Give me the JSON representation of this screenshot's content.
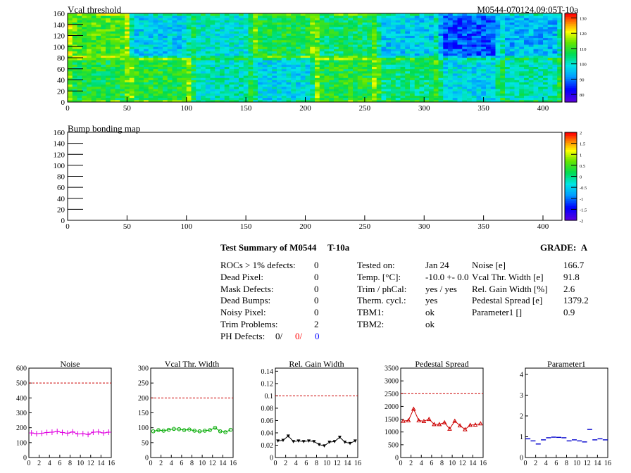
{
  "colors": {
    "red": "#ff0000",
    "blue": "#0000ff",
    "magenta": "#e000e0",
    "green": "#00aa00",
    "black": "#000000",
    "darkred": "#cc0000",
    "navy": "#0000cc",
    "dashed_ref": "#cc0000"
  },
  "heading_right": "M0544-070124.09:05T-10a",
  "summary": {
    "title": "Test Summary of M0544",
    "temp_tag": "T-10a",
    "grade_label": "GRADE:",
    "grade": "A",
    "left": [
      {
        "label": "ROCs > 1% defects:",
        "value": "0"
      },
      {
        "label": "Dead Pixel:",
        "value": "0"
      },
      {
        "label": "Mask Defects:",
        "value": "0"
      },
      {
        "label": "Dead Bumps:",
        "value": "0"
      },
      {
        "label": "Noisy Pixel:",
        "value": "0"
      },
      {
        "label": "Trim Problems:",
        "value": "2"
      }
    ],
    "ph_label": "PH Defects:",
    "ph_values": [
      "0/",
      "0/",
      "0"
    ],
    "middle": [
      {
        "label": "Tested on:",
        "value": "Jan 24"
      },
      {
        "label": "Temp. [°C]:",
        "value": "-10.0 +- 0.0"
      },
      {
        "label": "Trim / phCal:",
        "value": "yes / yes"
      },
      {
        "label": "Therm. cycl.:",
        "value": "yes"
      },
      {
        "label": "TBM1:",
        "value": "ok"
      },
      {
        "label": "TBM2:",
        "value": "ok"
      }
    ],
    "right": [
      {
        "label": "Noise [e]",
        "value": "166.7"
      },
      {
        "label": "Vcal Thr. Width [e]",
        "value": "91.8"
      },
      {
        "label": "Rel. Gain Width [%]",
        "value": "2.6"
      },
      {
        "label": "Pedestal Spread [e]",
        "value": "1379.2"
      },
      {
        "label": "Parameter1 []",
        "value": "0.9"
      }
    ]
  },
  "chart_data": [
    {
      "type": "heatmap",
      "title": "Vcal threshold",
      "xlim": [
        0,
        416
      ],
      "ylim": [
        0,
        160
      ],
      "xticks": [
        0,
        50,
        100,
        150,
        200,
        250,
        300,
        350,
        400
      ],
      "yticks": [
        0,
        20,
        40,
        60,
        80,
        100,
        120,
        140,
        160
      ],
      "colorbar_ticks": [
        "130",
        "120",
        "110",
        "100",
        "90",
        "80"
      ],
      "zlim": [
        75,
        133
      ],
      "grid": {
        "cols": 8,
        "rows": 2
      },
      "roc_means_top": [
        112,
        97,
        100,
        108,
        106,
        97,
        88,
        95
      ],
      "roc_means_bottom": [
        108,
        109,
        101,
        98,
        109,
        105,
        98,
        102
      ]
    },
    {
      "type": "heatmap",
      "title": "Bump bonding map",
      "xlim": [
        0,
        416
      ],
      "ylim": [
        0,
        160
      ],
      "xticks": [
        0,
        50,
        100,
        150,
        200,
        250,
        300,
        350,
        400
      ],
      "yticks": [
        0,
        20,
        40,
        60,
        80,
        100,
        120,
        140,
        160
      ],
      "colorbar_ticks": [
        "2",
        "1.5",
        "1",
        "0.5",
        "0",
        "-0.5",
        "-1",
        "-1.5",
        "-2"
      ],
      "zlim": [
        -2,
        2
      ],
      "values": []
    },
    {
      "type": "scatter",
      "title": "Noise",
      "x": [
        0,
        1,
        2,
        3,
        4,
        5,
        6,
        7,
        8,
        9,
        10,
        11,
        12,
        13,
        14,
        15
      ],
      "y": [
        165,
        160,
        163,
        168,
        170,
        175,
        168,
        163,
        172,
        158,
        160,
        155,
        170,
        172,
        165,
        170
      ],
      "ylim": [
        0,
        600
      ],
      "yticks": [
        0,
        100,
        200,
        300,
        400,
        500,
        600
      ],
      "ref": 500,
      "xlim": [
        0,
        16
      ],
      "xticks": [
        0,
        2,
        4,
        6,
        8,
        10,
        12,
        14,
        16
      ],
      "marker": "cross"
    },
    {
      "type": "line",
      "title": "Vcal Thr. Width",
      "x": [
        0,
        1,
        2,
        3,
        4,
        5,
        6,
        7,
        8,
        9,
        10,
        11,
        12,
        13,
        14,
        15
      ],
      "y": [
        88,
        92,
        90,
        93,
        96,
        95,
        92,
        94,
        90,
        88,
        90,
        92,
        100,
        88,
        85,
        93
      ],
      "ylim": [
        0,
        300
      ],
      "yticks": [
        0,
        50,
        100,
        150,
        200,
        250,
        300
      ],
      "ref": 200,
      "xlim": [
        0,
        16
      ],
      "xticks": [
        0,
        2,
        4,
        6,
        8,
        10,
        12,
        14,
        16
      ],
      "marker": "circle"
    },
    {
      "type": "line",
      "title": "Rel. Gain Width",
      "x": [
        0,
        1,
        2,
        3,
        4,
        5,
        6,
        7,
        8,
        9,
        10,
        11,
        12,
        13,
        14,
        15
      ],
      "y": [
        0.027,
        0.028,
        0.035,
        0.026,
        0.027,
        0.026,
        0.027,
        0.026,
        0.021,
        0.019,
        0.025,
        0.026,
        0.033,
        0.025,
        0.023,
        0.027
      ],
      "ylim": [
        0,
        0.145
      ],
      "yticks": [
        0,
        0.02,
        0.04,
        0.06,
        0.08,
        0.1,
        0.12,
        0.14
      ],
      "ref": 0.1,
      "xlim": [
        0,
        16
      ],
      "xticks": [
        0,
        2,
        4,
        6,
        8,
        10,
        12,
        14,
        16
      ],
      "marker": "triangle-down"
    },
    {
      "type": "line",
      "title": "Pedestal Spread",
      "x": [
        0,
        1,
        2,
        3,
        4,
        5,
        6,
        7,
        8,
        9,
        10,
        11,
        12,
        13,
        14,
        15
      ],
      "y": [
        1430,
        1450,
        1900,
        1450,
        1420,
        1500,
        1300,
        1300,
        1370,
        1120,
        1430,
        1250,
        1100,
        1270,
        1280,
        1330
      ],
      "ylim": [
        0,
        3500
      ],
      "yticks": [
        0,
        500,
        1000,
        1500,
        2000,
        2500,
        3000,
        3500
      ],
      "ref": 2500,
      "xlim": [
        0,
        16
      ],
      "xticks": [
        0,
        2,
        4,
        6,
        8,
        10,
        12,
        14,
        16
      ],
      "marker": "triangle-up"
    },
    {
      "type": "scatter",
      "title": "Parameter1",
      "x": [
        0,
        1,
        2,
        3,
        4,
        5,
        6,
        7,
        8,
        9,
        10,
        11,
        12,
        13,
        14,
        15
      ],
      "y": [
        0.9,
        0.8,
        0.65,
        0.85,
        0.95,
        0.98,
        0.97,
        0.95,
        0.8,
        0.85,
        0.8,
        0.75,
        1.35,
        0.85,
        0.9,
        0.85
      ],
      "ylim": [
        0,
        4.3
      ],
      "yticks": [
        0,
        1,
        2,
        3,
        4
      ],
      "xlim": [
        0,
        16
      ],
      "xticks": [
        0,
        2,
        4,
        6,
        8,
        10,
        12,
        14,
        16
      ],
      "marker": "hbar"
    }
  ]
}
